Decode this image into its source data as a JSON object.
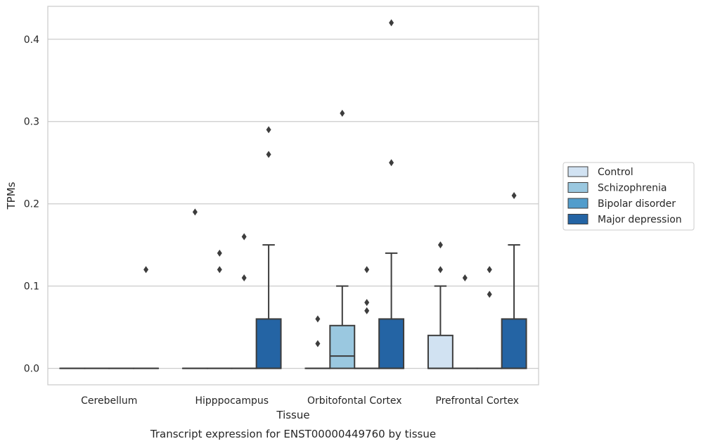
{
  "chart_data": {
    "type": "boxplot",
    "caption": "Transcript expression for ENST00000449760 by tissue",
    "xlabel": "Tissue",
    "ylabel": "TPMs",
    "ylim": [
      -0.02,
      0.44
    ],
    "yticks": [
      0.0,
      0.1,
      0.2,
      0.3,
      0.4
    ],
    "ytick_labels": [
      "0.0",
      "0.1",
      "0.2",
      "0.3",
      "0.4"
    ],
    "grid": "horizontal",
    "legend_position": "right",
    "categories": [
      "Cerebellum",
      "Hipppocampus",
      "Orbitofontal Cortex",
      "Prefrontal Cortex"
    ],
    "series": [
      {
        "name": "Control",
        "color": "#d1e2f2",
        "boxes": [
          {
            "q1": 0,
            "median": 0,
            "q3": 0,
            "whislo": 0,
            "whishi": 0,
            "fliers": []
          },
          {
            "q1": 0,
            "median": 0,
            "q3": 0,
            "whislo": 0,
            "whishi": 0,
            "fliers": [
              0.19
            ]
          },
          {
            "q1": 0,
            "median": 0,
            "q3": 0,
            "whislo": 0,
            "whishi": 0,
            "fliers": [
              0.06,
              0.03
            ]
          },
          {
            "q1": 0,
            "median": 0,
            "q3": 0.04,
            "whislo": 0,
            "whishi": 0.1,
            "fliers": [
              0.15,
              0.12
            ]
          }
        ]
      },
      {
        "name": "Schizophrenia",
        "color": "#9ac8e0",
        "boxes": [
          {
            "q1": 0,
            "median": 0,
            "q3": 0,
            "whislo": 0,
            "whishi": 0,
            "fliers": []
          },
          {
            "q1": 0,
            "median": 0,
            "q3": 0,
            "whislo": 0,
            "whishi": 0,
            "fliers": [
              0.14,
              0.12
            ]
          },
          {
            "q1": 0,
            "median": 0.015,
            "q3": 0.052,
            "whislo": 0,
            "whishi": 0.1,
            "fliers": [
              0.31
            ]
          },
          {
            "q1": 0,
            "median": 0,
            "q3": 0,
            "whislo": 0,
            "whishi": 0,
            "fliers": [
              0.11
            ]
          }
        ]
      },
      {
        "name": "Bipolar disorder",
        "color": "#529dcc",
        "boxes": [
          {
            "q1": 0,
            "median": 0,
            "q3": 0,
            "whislo": 0,
            "whishi": 0,
            "fliers": []
          },
          {
            "q1": 0,
            "median": 0,
            "q3": 0,
            "whislo": 0,
            "whishi": 0,
            "fliers": [
              0.16,
              0.11
            ]
          },
          {
            "q1": 0,
            "median": 0,
            "q3": 0,
            "whislo": 0,
            "whishi": 0,
            "fliers": [
              0.12,
              0.08,
              0.07
            ]
          },
          {
            "q1": 0,
            "median": 0,
            "q3": 0,
            "whislo": 0,
            "whishi": 0,
            "fliers": [
              0.12,
              0.12,
              0.09
            ]
          }
        ]
      },
      {
        "name": "Major depression",
        "color": "#2464a4",
        "boxes": [
          {
            "q1": 0,
            "median": 0,
            "q3": 0,
            "whislo": 0,
            "whishi": 0,
            "fliers": [
              0.12
            ]
          },
          {
            "q1": 0,
            "median": 0,
            "q3": 0.06,
            "whislo": 0,
            "whishi": 0.15,
            "fliers": [
              0.29,
              0.26
            ]
          },
          {
            "q1": 0,
            "median": 0,
            "q3": 0.06,
            "whislo": 0,
            "whishi": 0.14,
            "fliers": [
              0.42,
              0.25
            ]
          },
          {
            "q1": 0,
            "median": 0,
            "q3": 0.06,
            "whislo": 0,
            "whishi": 0.15,
            "fliers": [
              0.21
            ]
          }
        ]
      }
    ]
  }
}
